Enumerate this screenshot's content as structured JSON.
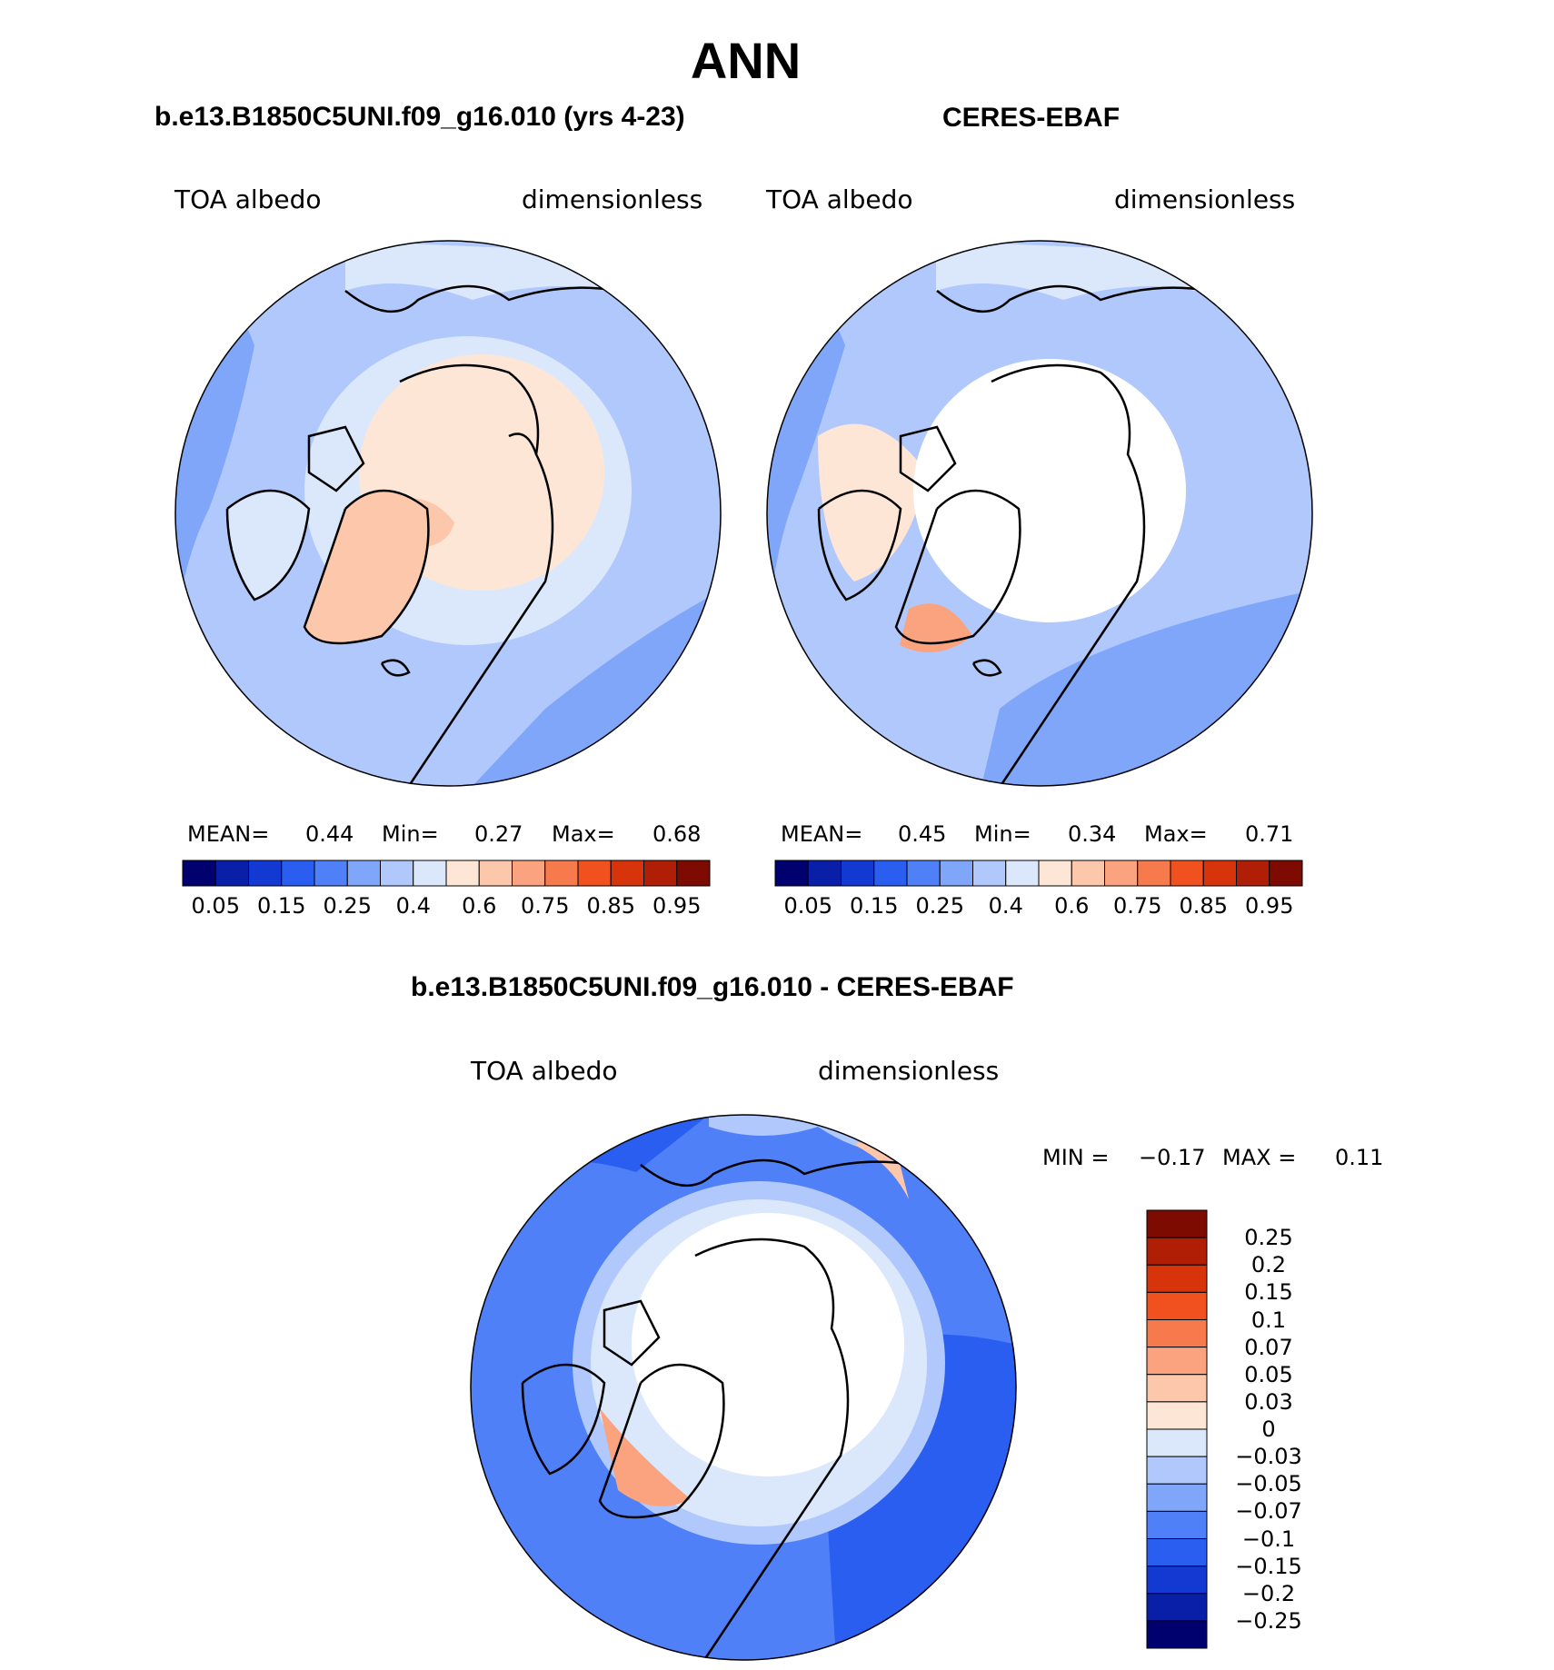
{
  "title": "ANN",
  "panels": [
    {
      "title": "b.e13.B1850C5UNI.f09_g16.010 (yrs 4-23)",
      "variable": "TOA albedo",
      "units": "dimensionless",
      "stats": {
        "mean_label": "MEAN=",
        "mean": "0.44",
        "min_label": "Min=",
        "min": "0.27",
        "max_label": "Max=",
        "max": "0.68"
      }
    },
    {
      "title": "CERES-EBAF",
      "variable": "TOA albedo",
      "units": "dimensionless",
      "stats": {
        "mean_label": "MEAN=",
        "mean": "0.45",
        "min_label": "Min=",
        "min": "0.34",
        "max_label": "Max=",
        "max": "0.71"
      }
    },
    {
      "title": "b.e13.B1850C5UNI.f09_g16.010 - CERES-EBAF",
      "variable": "TOA albedo",
      "units": "dimensionless",
      "stats": {
        "min_label": "MIN =",
        "min": "−0.17",
        "max_label": "MAX =",
        "max": "0.11"
      }
    }
  ],
  "colorbar_abs": {
    "labels": [
      "0.05",
      "0.15",
      "0.25",
      "0.4",
      "0.6",
      "0.75",
      "0.85",
      "0.95"
    ],
    "colors": [
      "#00006e",
      "#0a1fa8",
      "#1339d3",
      "#2a5ef0",
      "#4f80f7",
      "#7fa6f9",
      "#b0c8fb",
      "#dbe8fc",
      "#fde6d6",
      "#fcc7ab",
      "#fba37e",
      "#f77a4c",
      "#f0511f",
      "#d8340b",
      "#b01e06",
      "#7d0b02"
    ]
  },
  "colorbar_diff": {
    "labels": [
      "0.25",
      "0.2",
      "0.15",
      "0.1",
      "0.07",
      "0.05",
      "0.03",
      "0",
      "−0.03",
      "−0.05",
      "−0.07",
      "−0.1",
      "−0.15",
      "−0.2",
      "−0.25"
    ],
    "colors": [
      "#7d0b02",
      "#b01e06",
      "#d8340b",
      "#f0511f",
      "#f77a4c",
      "#fba37e",
      "#fcc7ab",
      "#fde6d6",
      "#dbe8fc",
      "#b0c8fb",
      "#7fa6f9",
      "#4f80f7",
      "#2a5ef0",
      "#1339d3",
      "#0a1fa8",
      "#00006e"
    ]
  }
}
